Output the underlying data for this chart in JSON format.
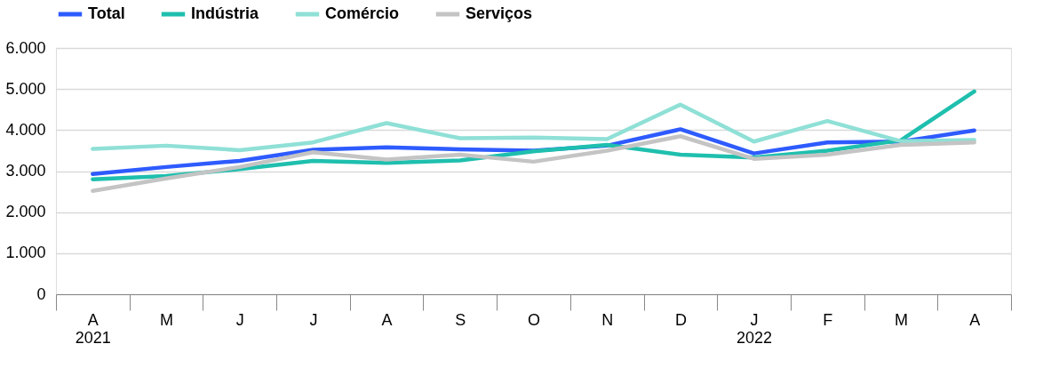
{
  "chart_data": {
    "type": "line",
    "categories": [
      "A\n2021",
      "M",
      "J",
      "J",
      "A",
      "S",
      "O",
      "N",
      "D",
      "J\n2022",
      "F",
      "M",
      "A"
    ],
    "series": [
      {
        "name": "Total",
        "color": "#2e5bff",
        "values": [
          2930,
          3100,
          3250,
          3520,
          3580,
          3530,
          3500,
          3620,
          4020,
          3430,
          3700,
          3720,
          3990
        ]
      },
      {
        "name": "Indústria",
        "color": "#1fbfae",
        "values": [
          2800,
          2880,
          3050,
          3250,
          3200,
          3260,
          3480,
          3640,
          3400,
          3330,
          3500,
          3750,
          4940
        ]
      },
      {
        "name": "Comércio",
        "color": "#8fe0d6",
        "values": [
          3540,
          3620,
          3510,
          3700,
          4170,
          3800,
          3820,
          3780,
          4620,
          3720,
          4220,
          3730,
          3760
        ]
      },
      {
        "name": "Serviços",
        "color": "#c4c4c4",
        "values": [
          2520,
          2820,
          3100,
          3460,
          3280,
          3400,
          3230,
          3500,
          3850,
          3300,
          3400,
          3640,
          3700
        ]
      }
    ],
    "ylim": [
      0,
      6000
    ],
    "yticks": [
      {
        "value": 0,
        "label": "0"
      },
      {
        "value": 1000,
        "label": "1.000"
      },
      {
        "value": 2000,
        "label": "2.000"
      },
      {
        "value": 3000,
        "label": "3.000"
      },
      {
        "value": 4000,
        "label": "4.000"
      },
      {
        "value": 5000,
        "label": "5.000"
      },
      {
        "value": 6000,
        "label": "6.000"
      }
    ],
    "grid": "y",
    "legend": "top left",
    "marker": "none",
    "line_style": "solid"
  }
}
